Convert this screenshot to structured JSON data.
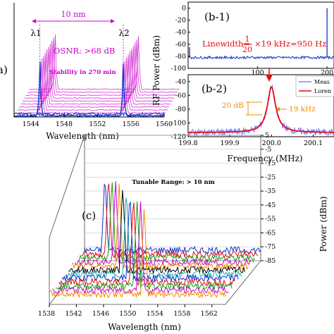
{
  "panel_a": {
    "label": "a)",
    "separation": "10 nm",
    "lambda1": "λ1",
    "lambda2": "λ2",
    "osnr": "OSNR: >68 dB",
    "stability": "Stability in 270 min",
    "xlabel": "Wavelength (nm)",
    "xticks": [
      "1544",
      "1548",
      "1552",
      "1556",
      "1560"
    ]
  },
  "panel_b": {
    "ylabel": "RF Power (dBm)",
    "xlabel": "Frequency (MHz)",
    "b1": {
      "label": "(b-1)",
      "yticks": [
        "0",
        "-20",
        "-40",
        "-60",
        "-80",
        "-100"
      ],
      "xticks": [
        "100",
        "200"
      ],
      "linewidth_prefix": "Linewidth=",
      "frac_num": "1",
      "frac_den": "20",
      "linewidth_suffix": "×19 kHz=950 Hz"
    },
    "b2": {
      "label": "(b-2)",
      "yticks": [
        "-40",
        "-60",
        "-80",
        "-100",
        "-120"
      ],
      "xticks": [
        "199.8",
        "199.9",
        "200.0",
        "200.1"
      ],
      "ann_20db": "20 dB",
      "ann_19khz": "19 kHz",
      "legend": [
        "Meas",
        "Loren"
      ]
    }
  },
  "panel_c": {
    "label": "(c)",
    "title": "Tunable Range: > 10 nm",
    "xlabel": "Wavelength (nm)",
    "ylabel": "Power (dBm)",
    "xticks": [
      "1538",
      "1542",
      "1546",
      "1550",
      "1554",
      "1558",
      "1562"
    ],
    "yticks": [
      "5",
      "-5",
      "-15",
      "-25",
      "-35",
      "-45",
      "-55",
      "-65",
      "-75",
      "-85"
    ]
  },
  "colors": {
    "measured": "#8080ff",
    "fit": "#e01010",
    "magenta": "#cc00cc",
    "orange": "#f08c00",
    "blue": "#1030d0",
    "traces": [
      "#1030d0",
      "#e01010",
      "#18a018",
      "#cc00cc",
      "#f08c00",
      "#000000",
      "#20b0b0"
    ]
  },
  "chart_data": [
    {
      "type": "line",
      "panel": "a",
      "title": "",
      "xlabel": "Wavelength (nm)",
      "ylabel": "",
      "xlim": [
        1542,
        1560
      ],
      "series": [
        {
          "name": "λ1",
          "x": [
            1545.1
          ],
          "y": [
            1
          ]
        },
        {
          "name": "λ2",
          "x": [
            1555.1
          ],
          "y": [
            1
          ]
        }
      ]
    },
    {
      "type": "line",
      "panel": "b-1",
      "xlabel": "",
      "ylabel": "RF Power (dBm)",
      "xlim": [
        0,
        210
      ],
      "ylim": [
        -100,
        10
      ],
      "series": [
        {
          "name": "",
          "x": [
            0,
            200
          ],
          "y": [
            -80,
            0
          ]
        }
      ]
    },
    {
      "type": "line",
      "panel": "b-2",
      "xlabel": "Frequency (MHz)",
      "ylabel": "RF Power (dBm)",
      "xlim": [
        199.8,
        200.15
      ],
      "ylim": [
        -120,
        -30
      ],
      "series": [
        {
          "name": "Meas",
          "x": [
            199.8,
            199.9,
            199.95,
            199.98,
            200.0,
            200.02,
            200.05,
            200.1,
            200.15
          ],
          "y": [
            -112,
            -108,
            -100,
            -78,
            -48,
            -78,
            -100,
            -108,
            -112
          ]
        },
        {
          "name": "Loren",
          "x": [
            199.8,
            199.9,
            199.95,
            199.98,
            200.0,
            200.02,
            200.05,
            200.1,
            200.15
          ],
          "y": [
            -114,
            -110,
            -101,
            -80,
            -48,
            -80,
            -101,
            -110,
            -114
          ]
        }
      ]
    },
    {
      "type": "line",
      "panel": "c",
      "title": "Tunable Range: > 10 nm",
      "xlabel": "Wavelength (nm)",
      "ylabel": "Power (dBm)",
      "xlim": [
        1538,
        1564
      ],
      "ylim": [
        -85,
        5
      ],
      "series": [
        {
          "name": "",
          "x": [
            1541
          ],
          "y": [
            -22
          ]
        },
        {
          "name": "",
          "x": [
            1542
          ],
          "y": [
            -20
          ]
        },
        {
          "name": "",
          "x": [
            1543
          ],
          "y": [
            -19
          ]
        },
        {
          "name": "",
          "x": [
            1544
          ],
          "y": [
            -18
          ]
        },
        {
          "name": "",
          "x": [
            1545
          ],
          "y": [
            -17
          ]
        },
        {
          "name": "",
          "x": [
            1546
          ],
          "y": [
            -16
          ]
        },
        {
          "name": "",
          "x": [
            1547
          ],
          "y": [
            -16
          ]
        },
        {
          "name": "",
          "x": [
            1548
          ],
          "y": [
            -15
          ]
        },
        {
          "name": "",
          "x": [
            1549
          ],
          "y": [
            -15
          ]
        },
        {
          "name": "",
          "x": [
            1550
          ],
          "y": [
            -14
          ]
        },
        {
          "name": "",
          "x": [
            1551
          ],
          "y": [
            -14
          ]
        },
        {
          "name": "",
          "x": [
            1552
          ],
          "y": [
            -14
          ]
        }
      ]
    }
  ]
}
